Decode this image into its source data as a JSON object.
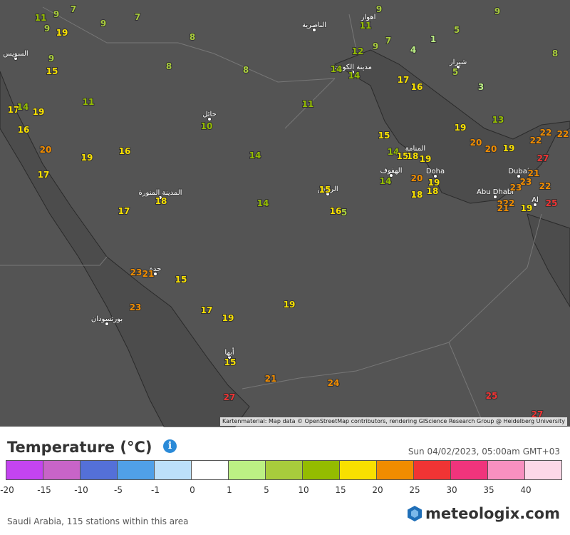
{
  "map": {
    "attribution": "Kartenmaterial: Map data © OpenStreetMap contributors, rendering GIScience Research Group @ Heidelberg University",
    "places": [
      "الناصرية",
      "اهواز",
      "مدينة الكويت",
      "شيراز",
      "السويس",
      "حائل",
      "المنامة",
      "الهفوف",
      "Doha",
      "الرياض",
      "المدينة المنورة",
      "Dubai",
      "Abu Dhabi",
      "Al",
      "جدة",
      "بورتسودان",
      "أبها"
    ],
    "stations": [
      9,
      9,
      7,
      11,
      7,
      9,
      9,
      19,
      9,
      11,
      5,
      8,
      7,
      4,
      1,
      12,
      9,
      8,
      9,
      15,
      8,
      8,
      14,
      14,
      5,
      17,
      16,
      3,
      11,
      11,
      17,
      14,
      19,
      10,
      13,
      16,
      19,
      15,
      20,
      20,
      19,
      22,
      22,
      22,
      20,
      16,
      19,
      14,
      14,
      15,
      18,
      19,
      27,
      17,
      14,
      20,
      19,
      18,
      18,
      21,
      23,
      23,
      22,
      18,
      17,
      14,
      15,
      16,
      5,
      22,
      22,
      21,
      19,
      25,
      23,
      21,
      15,
      23,
      19,
      17,
      19,
      15,
      21,
      24,
      27,
      25,
      27
    ]
  },
  "legend": {
    "title": "Temperature (°C)",
    "info": "i",
    "date": "Sun 04/02/2023, 05:00am GMT+03",
    "ticks": [
      -20,
      -15,
      -10,
      -5,
      -1,
      0,
      1,
      5,
      10,
      15,
      20,
      25,
      30,
      35,
      40
    ],
    "colors": [
      "#c444f0",
      "#c864c8",
      "#5470d8",
      "#50a0e8",
      "#bce0fa",
      "#ffffff",
      "#bcf084",
      "#a8cc3c",
      "#94bc00",
      "#f8e000",
      "#f08c00",
      "#f03434",
      "#f0347c",
      "#f890c0",
      "#fcd8e8"
    ]
  },
  "footer": {
    "stations_note": "Saudi Arabia, 115 stations within this area",
    "logo": "meteologix.com"
  }
}
